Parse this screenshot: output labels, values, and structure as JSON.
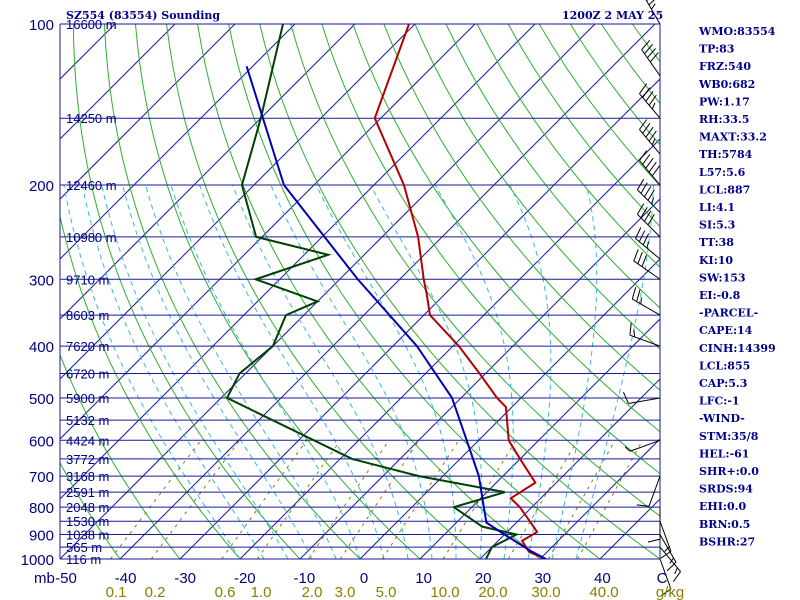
{
  "header": {
    "title": "SZ554 (83554) Sounding",
    "time": "1200Z  2 MAY 25"
  },
  "indices": [
    "WMO:83554",
    "TP:83",
    "FRZ:540",
    "WB0:682",
    "PW:1.17",
    "RH:33.5",
    "MAXT:33.2",
    "TH:5784",
    "L57:5.6",
    "LCL:887",
    "LI:4.1",
    "SI:5.3",
    "TT:38",
    "KI:10",
    "SW:153",
    "EI:-0.8",
    "-PARCEL-",
    "CAPE:14",
    "CINH:14399",
    "LCL:855",
    "CAP:5.3",
    "LFC:-1",
    "-WIND-",
    "STM:35/8",
    "HEL:-61",
    "SHR+:0.0",
    "SRDS:94",
    "EHI:0.0",
    "BRN:0.5",
    "BSHR:27"
  ],
  "axes": {
    "pressure_unit": "mb",
    "mixing_unit": "g/kg",
    "x_ticks": [
      "-50",
      "-40",
      "-30",
      "-20",
      "-10",
      "0",
      "10",
      "20",
      "30",
      "40",
      "C"
    ],
    "mixing_ticks": [
      "0.1",
      "0.2",
      "0.6",
      "1.0",
      "2.0",
      "3.0",
      "5.0",
      "10.0",
      "20.0",
      "30.0",
      "40.0"
    ]
  },
  "chart_data": {
    "type": "line",
    "title": "SZ554 (83554) Sounding",
    "x_range": [
      -50,
      50
    ],
    "pressure_levels": [
      100,
      200,
      300,
      400,
      500,
      600,
      700,
      800,
      900,
      1000
    ],
    "height_labels": [
      {
        "p": 100,
        "label": "16600 m"
      },
      {
        "p": 150,
        "label": "14250 m"
      },
      {
        "p": 200,
        "label": "12460 m"
      },
      {
        "p": 250,
        "label": "10980 m"
      },
      {
        "p": 300,
        "label": "9710 m"
      },
      {
        "p": 350,
        "label": "8603 m"
      },
      {
        "p": 400,
        "label": "7620 m"
      },
      {
        "p": 450,
        "label": "6720 m"
      },
      {
        "p": 500,
        "label": "5900 m"
      },
      {
        "p": 550,
        "label": "5132 m"
      },
      {
        "p": 600,
        "label": "4424 m"
      },
      {
        "p": 650,
        "label": "3772 m"
      },
      {
        "p": 700,
        "label": "3168 m"
      },
      {
        "p": 750,
        "label": "2591 m"
      },
      {
        "p": 800,
        "label": "2048 m"
      },
      {
        "p": 850,
        "label": "1530 m"
      },
      {
        "p": 900,
        "label": "1038 m"
      },
      {
        "p": 950,
        "label": "565 m"
      },
      {
        "p": 1000,
        "label": "116 m"
      }
    ],
    "series": [
      {
        "kind": "temperature",
        "color": "#b40000",
        "points": [
          {
            "p": 1000,
            "t": 31
          },
          {
            "p": 970,
            "t": 27
          },
          {
            "p": 925,
            "t": 24
          },
          {
            "p": 890,
            "t": 25
          },
          {
            "p": 850,
            "t": 22
          },
          {
            "p": 800,
            "t": 18
          },
          {
            "p": 770,
            "t": 15
          },
          {
            "p": 720,
            "t": 16.5
          },
          {
            "p": 650,
            "t": 10
          },
          {
            "p": 600,
            "t": 5
          },
          {
            "p": 520,
            "t": -1
          },
          {
            "p": 500,
            "t": -4
          },
          {
            "p": 450,
            "t": -11
          },
          {
            "p": 400,
            "t": -19
          },
          {
            "p": 350,
            "t": -29
          },
          {
            "p": 320,
            "t": -33
          },
          {
            "p": 300,
            "t": -36
          },
          {
            "p": 250,
            "t": -44
          },
          {
            "p": 200,
            "t": -55
          },
          {
            "p": 150,
            "t": -71
          },
          {
            "p": 100,
            "t": -81
          }
        ]
      },
      {
        "kind": "dewpoint",
        "color": "#004000",
        "points": [
          {
            "p": 1000,
            "t": 21
          },
          {
            "p": 950,
            "t": 20
          },
          {
            "p": 900,
            "t": 22
          },
          {
            "p": 870,
            "t": 15
          },
          {
            "p": 800,
            "t": 7
          },
          {
            "p": 750,
            "t": 13
          },
          {
            "p": 700,
            "t": -4
          },
          {
            "p": 650,
            "t": -18
          },
          {
            "p": 500,
            "t": -49
          },
          {
            "p": 450,
            "t": -51
          },
          {
            "p": 400,
            "t": -50
          },
          {
            "p": 350,
            "t": -53
          },
          {
            "p": 330,
            "t": -50
          },
          {
            "p": 300,
            "t": -64
          },
          {
            "p": 270,
            "t": -56
          },
          {
            "p": 250,
            "t": -71
          },
          {
            "p": 200,
            "t": -82
          },
          {
            "p": 150,
            "t": -90
          },
          {
            "p": 100,
            "t": -102
          }
        ]
      },
      {
        "kind": "parcel",
        "color": "#0000b4",
        "points": [
          {
            "p": 1000,
            "t": 31
          },
          {
            "p": 965,
            "t": 27
          },
          {
            "p": 900,
            "t": 20
          },
          {
            "p": 855,
            "t": 15
          },
          {
            "p": 800,
            "t": 12
          },
          {
            "p": 700,
            "t": 6
          },
          {
            "p": 600,
            "t": -2
          },
          {
            "p": 500,
            "t": -11.5
          },
          {
            "p": 400,
            "t": -26
          },
          {
            "p": 300,
            "t": -47
          },
          {
            "p": 200,
            "t": -75
          },
          {
            "p": 120,
            "t": -101
          }
        ]
      }
    ],
    "wind_barbs": [
      {
        "p": 100,
        "dir": 330,
        "spd": 35
      },
      {
        "p": 125,
        "dir": 325,
        "spd": 40
      },
      {
        "p": 150,
        "dir": 320,
        "spd": 45
      },
      {
        "p": 175,
        "dir": 320,
        "spd": 45
      },
      {
        "p": 200,
        "dir": 320,
        "spd": 50
      },
      {
        "p": 225,
        "dir": 315,
        "spd": 45
      },
      {
        "p": 250,
        "dir": 315,
        "spd": 40
      },
      {
        "p": 275,
        "dir": 310,
        "spd": 35
      },
      {
        "p": 300,
        "dir": 305,
        "spd": 30
      },
      {
        "p": 350,
        "dir": 300,
        "spd": 25
      },
      {
        "p": 400,
        "dir": 290,
        "spd": 15
      },
      {
        "p": 500,
        "dir": 260,
        "spd": 10
      },
      {
        "p": 600,
        "dir": 250,
        "spd": 5
      },
      {
        "p": 700,
        "dir": 200,
        "spd": 10
      },
      {
        "p": 800,
        "dir": 180,
        "spd": 10
      },
      {
        "p": 850,
        "dir": 160,
        "spd": 15
      },
      {
        "p": 900,
        "dir": 150,
        "spd": 15
      },
      {
        "p": 950,
        "dir": 140,
        "spd": 15
      },
      {
        "p": 1000,
        "dir": 160,
        "spd": 10
      }
    ]
  }
}
